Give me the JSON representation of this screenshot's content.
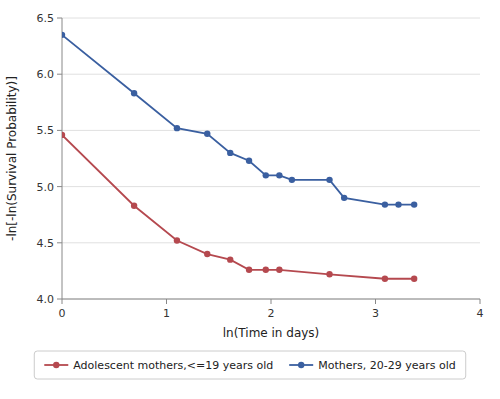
{
  "chart_data": {
    "type": "line",
    "x_label": "ln(Time in days)",
    "y_label": "-ln[-ln(Survival Probability)]",
    "series": [
      {
        "name": "Adolescent mothers,<=19 years old",
        "color": "#b5494f",
        "marker": "circle",
        "line_style": "solid",
        "x": [
          0.0,
          0.69,
          1.1,
          1.39,
          1.61,
          1.79,
          1.95,
          2.08,
          2.56,
          3.09,
          3.37
        ],
        "values": [
          5.46,
          4.83,
          4.52,
          4.4,
          4.35,
          4.26,
          4.26,
          4.26,
          4.22,
          4.18,
          4.18
        ]
      },
      {
        "name": "Mothers, 20-29 years old",
        "color": "#3a5fa0",
        "marker": "circle",
        "line_style": "solid",
        "x": [
          0.0,
          0.69,
          1.1,
          1.39,
          1.61,
          1.79,
          1.95,
          2.08,
          2.2,
          2.56,
          2.7,
          3.09,
          3.22,
          3.37
        ],
        "values": [
          6.35,
          5.83,
          5.52,
          5.47,
          5.3,
          5.23,
          5.1,
          5.1,
          5.06,
          5.06,
          4.9,
          4.84,
          4.84,
          4.84
        ]
      }
    ],
    "xlim": [
      0,
      4
    ],
    "ylim": [
      4.0,
      6.5
    ],
    "xticks": [
      0,
      1,
      2,
      3,
      4
    ],
    "yticks": [
      {
        "value": 4.0,
        "label": "4.0"
      },
      {
        "value": 4.5,
        "label": "4.5"
      },
      {
        "value": 5.0,
        "label": "5.0"
      },
      {
        "value": 5.5,
        "label": "5.5"
      },
      {
        "value": 6.0,
        "label": "6.0"
      },
      {
        "value": 6.5,
        "label": "6.5"
      }
    ],
    "grid": true,
    "legend": "bottom"
  }
}
